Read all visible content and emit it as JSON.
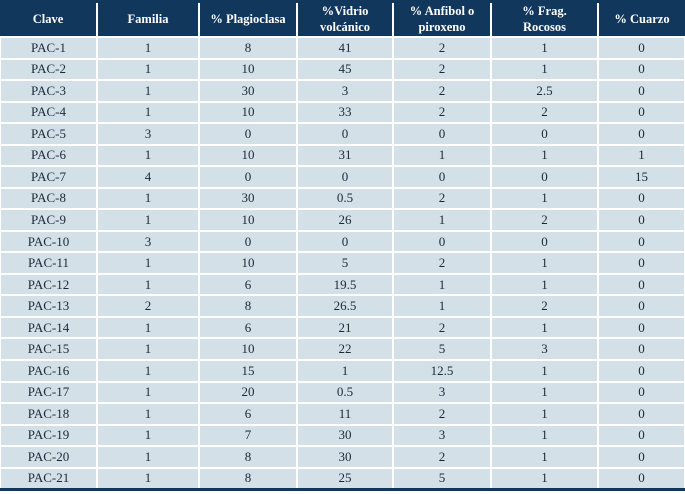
{
  "colors": {
    "header_background": "#11375c",
    "header_text": "#ffffff",
    "row_background": "#d4e0e7",
    "body_text": "#1b2838",
    "gridline": "#ffffff"
  },
  "chart_data": {
    "type": "table",
    "title": "",
    "columns": [
      "Clave",
      "Familia",
      "% Plagioclasa",
      "%Vidrio\nvolcánico",
      "% Anfibol o\npiroxeno",
      "% Frag.\nRocosos",
      "% Cuarzo"
    ],
    "rows": [
      [
        "PAC-1",
        1,
        8,
        41,
        2,
        1,
        0
      ],
      [
        "PAC-2",
        1,
        10,
        45,
        2,
        1,
        0
      ],
      [
        "PAC-3",
        1,
        30,
        3,
        2,
        2.5,
        0
      ],
      [
        "PAC-4",
        1,
        10,
        33,
        2,
        2,
        0
      ],
      [
        "PAC-5",
        3,
        0,
        0,
        0,
        0,
        0
      ],
      [
        "PAC-6",
        1,
        10,
        31,
        1,
        1,
        1
      ],
      [
        "PAC-7",
        4,
        0,
        0,
        0,
        0,
        15
      ],
      [
        "PAC-8",
        1,
        30,
        0.5,
        2,
        1,
        0
      ],
      [
        "PAC-9",
        1,
        10,
        26,
        1,
        2,
        0
      ],
      [
        "PAC-10",
        3,
        0,
        0,
        0,
        0,
        0
      ],
      [
        "PAC-11",
        1,
        10,
        5,
        2,
        1,
        0
      ],
      [
        "PAC-12",
        1,
        6,
        19.5,
        1,
        1,
        0
      ],
      [
        "PAC-13",
        2,
        8,
        26.5,
        1,
        2,
        0
      ],
      [
        "PAC-14",
        1,
        6,
        21,
        2,
        1,
        0
      ],
      [
        "PAC-15",
        1,
        10,
        22,
        5,
        3,
        0
      ],
      [
        "PAC-16",
        1,
        15,
        1,
        12.5,
        1,
        0
      ],
      [
        "PAC-17",
        1,
        20,
        0.5,
        3,
        1,
        0
      ],
      [
        "PAC-18",
        1,
        6,
        11,
        2,
        1,
        0
      ],
      [
        "PAC-19",
        1,
        7,
        30,
        3,
        1,
        0
      ],
      [
        "PAC-20",
        1,
        8,
        30,
        2,
        1,
        0
      ],
      [
        "PAC-21",
        1,
        8,
        25,
        5,
        1,
        0
      ]
    ]
  }
}
